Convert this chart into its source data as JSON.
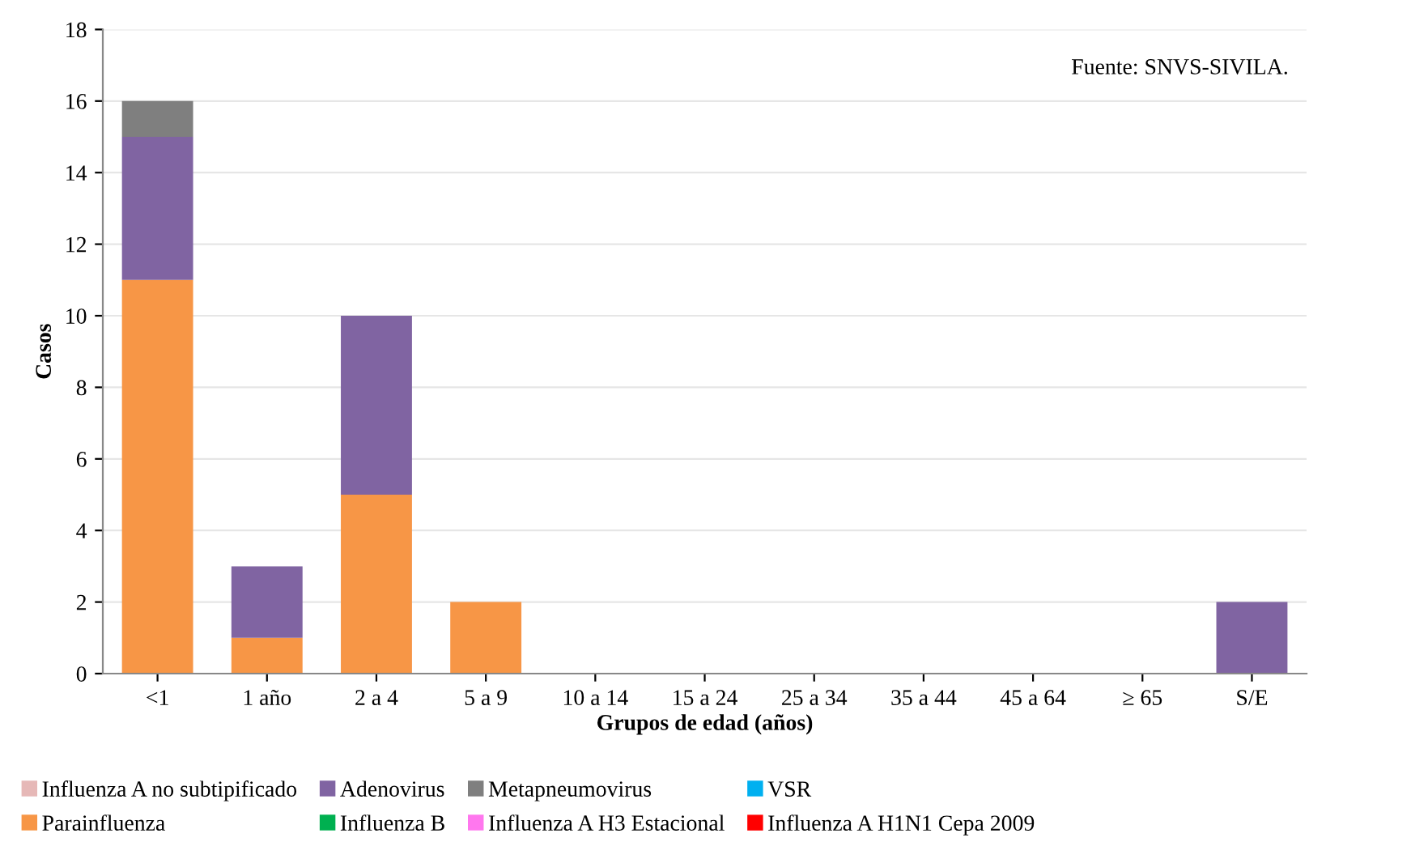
{
  "chart_data": {
    "type": "bar",
    "stacked": true,
    "xlabel": "Grupos de edad (años)",
    "ylabel": "Casos",
    "categories": [
      "<1",
      "1 año",
      "2 a 4",
      "5 a 9",
      "10 a 14",
      "15 a 24",
      "25 a 34",
      "35 a 44",
      "45 a 64",
      "≥ 65",
      "S/E"
    ],
    "series": [
      {
        "name": "Influenza A no subtipificado",
        "color": "#e6b8b7",
        "values": [
          0,
          0,
          0,
          0,
          0,
          0,
          0,
          0,
          0,
          0,
          0
        ]
      },
      {
        "name": "Parainfluenza",
        "color": "#f79646",
        "values": [
          11,
          1,
          5,
          2,
          0,
          0,
          0,
          0,
          0,
          0,
          0
        ]
      },
      {
        "name": "Adenovirus",
        "color": "#8064a2",
        "values": [
          4,
          2,
          5,
          0,
          0,
          0,
          0,
          0,
          0,
          0,
          2
        ]
      },
      {
        "name": "Influenza B",
        "color": "#00b050",
        "values": [
          0,
          0,
          0,
          0,
          0,
          0,
          0,
          0,
          0,
          0,
          0
        ]
      },
      {
        "name": "Metapneumovirus",
        "color": "#7f7f7f",
        "values": [
          1,
          0,
          0,
          0,
          0,
          0,
          0,
          0,
          0,
          0,
          0
        ]
      },
      {
        "name": "Influenza A H3 Estacional",
        "color": "#ff77ee",
        "values": [
          0,
          0,
          0,
          0,
          0,
          0,
          0,
          0,
          0,
          0,
          0
        ]
      },
      {
        "name": "VSR",
        "color": "#00b0f0",
        "values": [
          0,
          0,
          0,
          0,
          0,
          0,
          0,
          0,
          0,
          0,
          0
        ]
      },
      {
        "name": "Influenza A H1N1 Cepa 2009",
        "color": "#ff0000",
        "values": [
          0,
          0,
          0,
          0,
          0,
          0,
          0,
          0,
          0,
          0,
          0
        ]
      }
    ],
    "ylim": [
      0,
      18
    ],
    "yticks": [
      0,
      2,
      4,
      6,
      8,
      10,
      12,
      14,
      16,
      18
    ],
    "grid": "y",
    "legend": "bottom",
    "annotations": [
      "Fuente: SNVS-SIVILA."
    ]
  }
}
